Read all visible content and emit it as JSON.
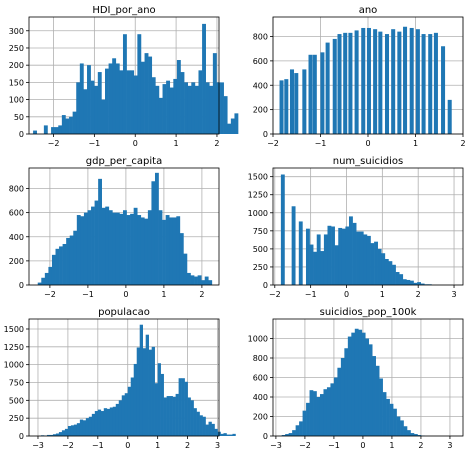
{
  "chart_data": [
    {
      "type": "bar",
      "title": "HDI_por_ano",
      "xlabel": "",
      "ylabel": "",
      "xlim": [
        -2.6,
        2.05
      ],
      "ylim": [
        0,
        340
      ],
      "xticks": [
        -2,
        -1,
        0,
        1,
        2
      ],
      "yticks": [
        0,
        50,
        100,
        150,
        200,
        250,
        300
      ],
      "grid": true,
      "color": "#1f77b4",
      "bins": {
        "start": -2.5,
        "width": 0.088,
        "values": [
          10,
          0,
          0,
          25,
          0,
          20,
          20,
          25,
          55,
          45,
          50,
          65,
          150,
          205,
          130,
          200,
          155,
          140,
          180,
          100,
          190,
          205,
          220,
          205,
          185,
          290,
          185,
          185,
          170,
          290,
          210,
          235,
          225,
          165,
          140,
          105,
          145,
          155,
          135,
          160,
          215,
          180,
          150,
          140,
          150,
          140,
          185,
          320,
          150,
          140,
          235,
          150,
          150,
          110,
          30,
          45,
          60
        ]
      }
    },
    {
      "type": "bar",
      "title": "ano",
      "xlabel": "",
      "ylabel": "",
      "xlim": [
        -2.0,
        2.0
      ],
      "ylim": [
        0,
        960
      ],
      "xticks": [
        -2,
        -1,
        0,
        1,
        2
      ],
      "yticks": [
        0,
        200,
        400,
        600,
        800
      ],
      "grid": true,
      "color": "#1f77b4",
      "bar_width": 0.085,
      "x": [
        -1.82,
        -1.72,
        -1.6,
        -1.51,
        -1.34,
        -1.21,
        -1.12,
        -0.96,
        -0.85,
        -0.7,
        -0.6,
        -0.48,
        -0.37,
        -0.24,
        -0.1,
        0.02,
        0.15,
        0.26,
        0.4,
        0.53,
        0.66,
        0.78,
        0.92,
        1.05,
        1.17,
        1.31,
        1.43,
        1.58,
        1.72
      ],
      "values": [
        440,
        450,
        530,
        500,
        530,
        650,
        650,
        670,
        750,
        780,
        820,
        830,
        830,
        850,
        870,
        870,
        860,
        840,
        820,
        860,
        840,
        880,
        870,
        860,
        820,
        820,
        830,
        720,
        280
      ]
    },
    {
      "type": "bar",
      "title": "gdp_per_capita",
      "xlabel": "",
      "ylabel": "",
      "xlim": [
        -2.55,
        2.45
      ],
      "ylim": [
        0,
        970
      ],
      "xticks": [
        -2,
        -1,
        0,
        1,
        2
      ],
      "yticks": [
        0,
        200,
        400,
        600,
        800
      ],
      "grid": true,
      "color": "#1f77b4",
      "bins": {
        "start": -2.32,
        "width": 0.0935,
        "values": [
          20,
          60,
          100,
          150,
          250,
          300,
          320,
          340,
          390,
          410,
          450,
          580,
          570,
          600,
          620,
          650,
          700,
          880,
          640,
          650,
          620,
          600,
          600,
          590,
          620,
          580,
          590,
          640,
          580,
          560,
          550,
          620,
          860,
          930,
          620,
          540,
          580,
          560,
          560,
          570,
          430,
          260,
          100,
          80,
          70,
          80,
          40,
          70,
          40
        ]
      }
    },
    {
      "type": "bar",
      "title": "num_suicidios",
      "xlabel": "",
      "ylabel": "",
      "xlim": [
        -2.05,
        3.25
      ],
      "ylim": [
        0,
        1620
      ],
      "xticks": [
        -2,
        -1,
        0,
        1,
        2,
        3
      ],
      "yticks": [
        0,
        250,
        500,
        750,
        1000,
        1250,
        1500
      ],
      "grid": true,
      "color": "#1f77b4",
      "bins": {
        "start": -1.83,
        "width": 0.1,
        "values": [
          1530,
          0,
          0,
          1090,
          0,
          880,
          0,
          780,
          560,
          460,
          700,
          470,
          700,
          820,
          810,
          550,
          790,
          780,
          810,
          950,
          860,
          740,
          740,
          700,
          680,
          580,
          600,
          500,
          440,
          360,
          330,
          280,
          180,
          150,
          80,
          70,
          60,
          30,
          40,
          20,
          10,
          10
        ]
      }
    },
    {
      "type": "bar",
      "title": "populacao",
      "xlabel": "",
      "ylabel": "",
      "xlim": [
        -3.3,
        3.05
      ],
      "ylim": [
        0,
        1640
      ],
      "xticks": [
        -3,
        -2,
        -1,
        0,
        1,
        2,
        3
      ],
      "yticks": [
        0,
        250,
        500,
        750,
        1000,
        1250,
        1500
      ],
      "grid": true,
      "color": "#1f77b4",
      "bins": {
        "start": -2.9,
        "width": 0.1,
        "values": [
          10,
          5,
          15,
          15,
          25,
          35,
          55,
          80,
          100,
          140,
          150,
          160,
          180,
          230,
          220,
          250,
          270,
          310,
          350,
          370,
          350,
          390,
          380,
          400,
          410,
          450,
          500,
          570,
          600,
          690,
          820,
          1010,
          1240,
          1560,
          1230,
          1420,
          1210,
          1250,
          740,
          1020,
          870,
          540,
          560,
          560,
          550,
          590,
          810,
          810,
          760,
          540,
          500,
          390,
          340,
          290,
          270,
          160,
          200,
          170,
          100,
          60,
          30,
          40,
          20,
          20,
          30
        ]
      }
    },
    {
      "type": "bar",
      "title": "suicidios_pop_100k",
      "xlabel": "",
      "ylabel": "",
      "xlim": [
        -3.1,
        3.45
      ],
      "ylim": [
        0,
        1200
      ],
      "xticks": [
        -3,
        -2,
        -1,
        0,
        1,
        2,
        3
      ],
      "yticks": [
        0,
        200,
        400,
        600,
        800,
        1000
      ],
      "grid": true,
      "color": "#1f77b4",
      "bins": {
        "start": -2.8,
        "width": 0.12,
        "values": [
          10,
          20,
          30,
          60,
          110,
          150,
          260,
          340,
          470,
          460,
          400,
          430,
          480,
          500,
          540,
          600,
          700,
          800,
          900,
          1020,
          1060,
          1100,
          1090,
          1060,
          1000,
          940,
          820,
          720,
          590,
          450,
          380,
          330,
          280,
          200,
          160,
          100,
          60,
          30,
          20,
          10,
          5
        ]
      }
    }
  ]
}
